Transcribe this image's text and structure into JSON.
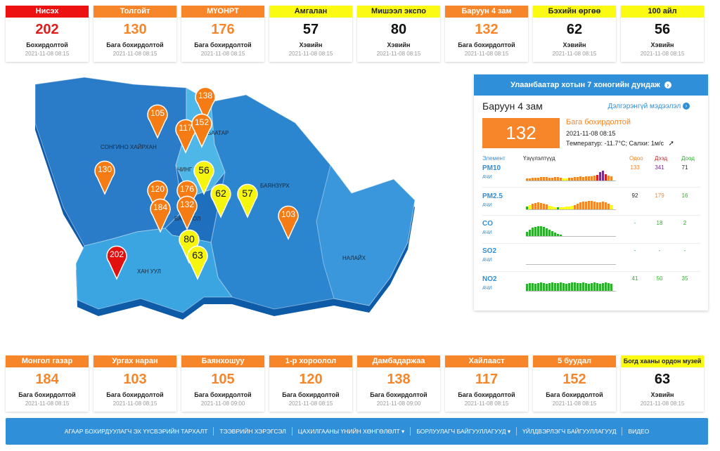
{
  "top_cards": [
    {
      "name": "Нисэх",
      "value": "202",
      "status": "Бохирдолтой",
      "time": "2021-11-08 08:15",
      "level": "red"
    },
    {
      "name": "Толгойт",
      "value": "130",
      "status": "Бага бохирдолтой",
      "time": "2021-11-08 08:15",
      "level": "orange"
    },
    {
      "name": "МҮОНРТ",
      "value": "176",
      "status": "Бага бохирдолтой",
      "time": "2021-11-08 08:15",
      "level": "orange"
    },
    {
      "name": "Амгалан",
      "value": "57",
      "status": "Хэвийн",
      "time": "2021-11-08 08:15",
      "level": "yellow"
    },
    {
      "name": "Мишээл экспо",
      "value": "80",
      "status": "Хэвийн",
      "time": "2021-11-08 08:15",
      "level": "yellow"
    },
    {
      "name": "Баруун 4 зам",
      "value": "132",
      "status": "Бага бохирдолтой",
      "time": "2021-11-08 08:15",
      "level": "orange"
    },
    {
      "name": "Бэхийн өргөө",
      "value": "62",
      "status": "Хэвийн",
      "time": "2021-11-08 08:15",
      "level": "yellow"
    },
    {
      "name": "100 айл",
      "value": "56",
      "status": "Хэвийн",
      "time": "2021-11-08 08:15",
      "level": "yellow"
    }
  ],
  "bottom_cards": [
    {
      "name": "Монгол газар",
      "value": "184",
      "status": "Бага бохирдолтой",
      "time": "2021-11-08 08:15",
      "level": "orange"
    },
    {
      "name": "Ургах наран",
      "value": "103",
      "status": "Бага бохирдолтой",
      "time": "2021-11-08 08:15",
      "level": "orange"
    },
    {
      "name": "Баянхошуу",
      "value": "105",
      "status": "Бага бохирдолтой",
      "time": "2021-11-08 09:00",
      "level": "orange"
    },
    {
      "name": "1-р хороолол",
      "value": "120",
      "status": "Бага бохирдолтой",
      "time": "2021-11-08 08:15",
      "level": "orange"
    },
    {
      "name": "Дамбадаржаа",
      "value": "138",
      "status": "Бага бохирдолтой",
      "time": "2021-11-08 09:00",
      "level": "orange"
    },
    {
      "name": "Хайлааст",
      "value": "117",
      "status": "Бага бохирдолтой",
      "time": "2021-11-08 08:15",
      "level": "orange"
    },
    {
      "name": "5 буудал",
      "value": "152",
      "status": "Бага бохирдолтой",
      "time": "2021-11-08 08:15",
      "level": "orange"
    },
    {
      "name": "Богд хааны ордон музей",
      "value": "63",
      "status": "Хэвийн",
      "time": "2021-11-08 08:15",
      "level": "yellow"
    }
  ],
  "map": {
    "district_labels": [
      "СОНГИНО ХАЙРХАН",
      "ЧИНГ",
      "БААТАР",
      "БАЯНЗҮРХ",
      "БАЯНГОЛ",
      "ХАН УУЛ",
      "НАЛАЙХ"
    ],
    "markers": [
      "138",
      "105",
      "117",
      "152",
      "130",
      "56",
      "120",
      "176",
      "62",
      "57",
      "184",
      "132",
      "103",
      "80",
      "202",
      "63"
    ]
  },
  "panel": {
    "header": "Улаанбаатар хотын 7 хоногийн дундаж",
    "station": "Баруун 4 зам",
    "more_link": "Дэлгэрэнгүй мэдээлэл",
    "aqi": "132",
    "status": "Бага бохирдолтой",
    "time": "2021-11-08 08:15",
    "weather": "Температур: -11.7°C; Салхи: 1м/с",
    "table_headers": {
      "element": "Элемент",
      "indicator": "Үзүүлэлтүүд",
      "now": "Одоо",
      "max": "Дээд",
      "min": "Доод"
    },
    "pollutants": [
      {
        "name": "PM10",
        "sub": "АЧИ",
        "now": "133",
        "max": "341",
        "min": "71",
        "now_color": "orange",
        "max_color": "purple",
        "min_color": "black"
      },
      {
        "name": "PM2.5",
        "sub": "АЧИ",
        "now": "92",
        "max": "179",
        "min": "16",
        "now_color": "black",
        "max_color": "orange",
        "min_color": "green"
      },
      {
        "name": "CO",
        "sub": "АЧИ",
        "now": "-",
        "max": "18",
        "min": "2",
        "now_color": "green",
        "max_color": "green",
        "min_color": "green"
      },
      {
        "name": "SO2",
        "sub": "АЧИ",
        "now": "-",
        "max": "-",
        "min": "-",
        "now_color": "green",
        "max_color": "green",
        "min_color": "green"
      },
      {
        "name": "NO2",
        "sub": "АЧИ",
        "now": "41",
        "max": "50",
        "min": "35",
        "now_color": "green",
        "max_color": "green",
        "min_color": "green"
      }
    ]
  },
  "nav": [
    "АГААР БОХИРДУУЛАГЧ ЭХ ҮҮСВЭРИЙН ТАРХАЛТ",
    "ТЭЭВРИЙН ХЭРЭГСЭЛ",
    "ЦАХИЛГААНЫ ҮНИЙН ХӨНГӨЛӨЛТ ▾",
    "БОРЛУУЛАГЧ БАЙГУУЛЛАГУУД ▾",
    "ҮЙЛДВЭРЛЭГЧ БАЙГУУЛЛАГУУД",
    "ВИДЕО"
  ],
  "colors": {
    "red": "#ee1111",
    "orange": "#f7862b",
    "yellow": "#fafa13",
    "blue": "#2f8fd8"
  }
}
